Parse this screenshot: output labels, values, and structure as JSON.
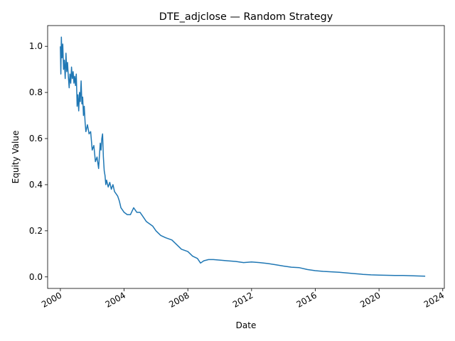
{
  "chart_data": {
    "type": "line",
    "title": "DTE_adjclose — Random Strategy",
    "xlabel": "Date",
    "ylabel": "Equity Value",
    "xlim": [
      1999.2,
      2024.1
    ],
    "ylim": [
      -0.05,
      1.09
    ],
    "grid": false,
    "x_ticks": [
      "2000",
      "2004",
      "2008",
      "2012",
      "2016",
      "2020",
      "2024"
    ],
    "y_ticks": [
      "0.0",
      "0.2",
      "0.4",
      "0.6",
      "0.8",
      "1.0"
    ],
    "series": [
      {
        "color": "#1f77b4",
        "x": [
          2000.0,
          2000.03,
          2000.06,
          2000.1,
          2000.15,
          2000.2,
          2000.25,
          2000.3,
          2000.35,
          2000.4,
          2000.45,
          2000.5,
          2000.55,
          2000.6,
          2000.65,
          2000.7,
          2000.75,
          2000.8,
          2000.85,
          2000.9,
          2000.95,
          2001.0,
          2001.05,
          2001.1,
          2001.15,
          2001.2,
          2001.25,
          2001.3,
          2001.35,
          2001.4,
          2001.45,
          2001.5,
          2001.55,
          2001.6,
          2001.7,
          2001.8,
          2001.9,
          2002.0,
          2002.1,
          2002.2,
          2002.3,
          2002.4,
          2002.5,
          2002.55,
          2002.6,
          2002.65,
          2002.7,
          2002.75,
          2002.8,
          2002.85,
          2002.9,
          2003.0,
          2003.1,
          2003.2,
          2003.3,
          2003.4,
          2003.5,
          2003.6,
          2003.7,
          2003.8,
          2003.9,
          2004.0,
          2004.2,
          2004.4,
          2004.6,
          2004.8,
          2005.0,
          2005.2,
          2005.4,
          2005.6,
          2005.8,
          2006.0,
          2006.3,
          2006.6,
          2007.0,
          2007.3,
          2007.6,
          2008.0,
          2008.3,
          2008.6,
          2008.8,
          2009.0,
          2009.3,
          2009.6,
          2010.0,
          2010.5,
          2011.0,
          2011.5,
          2012.0,
          2012.5,
          2013.0,
          2013.5,
          2014.0,
          2014.5,
          2015.0,
          2015.5,
          2016.0,
          2016.5,
          2017.0,
          2017.5,
          2018.0,
          2018.5,
          2019.0,
          2019.5,
          2020.0,
          2020.5,
          2021.0,
          2021.5,
          2022.0,
          2022.5,
          2022.9
        ],
        "y": [
          1.0,
          0.88,
          1.04,
          0.95,
          1.01,
          0.9,
          0.94,
          0.86,
          0.97,
          0.89,
          0.93,
          0.87,
          0.82,
          0.88,
          0.84,
          0.91,
          0.86,
          0.89,
          0.84,
          0.87,
          0.83,
          0.88,
          0.74,
          0.79,
          0.72,
          0.8,
          0.76,
          0.85,
          0.75,
          0.78,
          0.7,
          0.74,
          0.67,
          0.63,
          0.66,
          0.62,
          0.63,
          0.55,
          0.57,
          0.5,
          0.52,
          0.47,
          0.58,
          0.55,
          0.6,
          0.62,
          0.52,
          0.46,
          0.44,
          0.4,
          0.42,
          0.39,
          0.41,
          0.38,
          0.4,
          0.37,
          0.36,
          0.35,
          0.33,
          0.3,
          0.29,
          0.28,
          0.27,
          0.27,
          0.3,
          0.28,
          0.28,
          0.26,
          0.24,
          0.23,
          0.22,
          0.2,
          0.18,
          0.17,
          0.16,
          0.14,
          0.12,
          0.11,
          0.09,
          0.08,
          0.06,
          0.07,
          0.075,
          0.075,
          0.073,
          0.07,
          0.067,
          0.062,
          0.065,
          0.062,
          0.058,
          0.053,
          0.047,
          0.042,
          0.04,
          0.032,
          0.027,
          0.024,
          0.022,
          0.02,
          0.017,
          0.014,
          0.011,
          0.009,
          0.008,
          0.007,
          0.006,
          0.006,
          0.005,
          0.004,
          0.003
        ]
      }
    ]
  }
}
